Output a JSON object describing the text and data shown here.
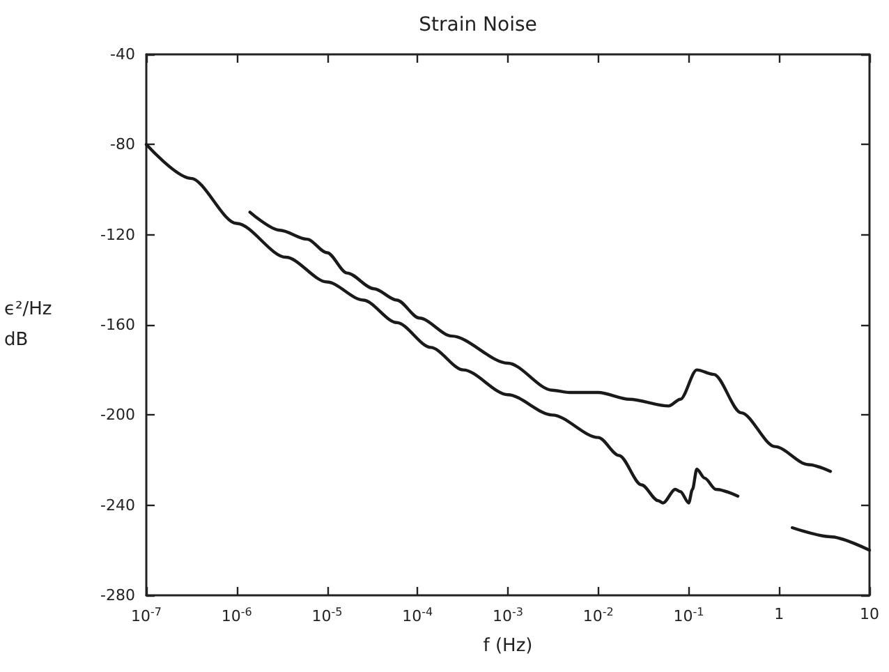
{
  "chart_data": {
    "type": "line",
    "title": "Strain Noise",
    "xlabel": "f (Hz)",
    "ylabel": "ϵ²/Hz\ndB",
    "log": "x",
    "grid": false,
    "marker": "none",
    "line_style": "solid",
    "xlim": [
      1e-07,
      10
    ],
    "ylim": [
      -280,
      -40
    ],
    "xticks": [
      {
        "value": 1e-07,
        "label": "10$^{-7}$"
      },
      {
        "value": 1e-06,
        "label": "10$^{-6}$"
      },
      {
        "value": 1e-05,
        "label": "10$^{-5}$"
      },
      {
        "value": 0.0001,
        "label": "10$^{-4}$"
      },
      {
        "value": 0.001,
        "label": "10$^{-3}$"
      },
      {
        "value": 0.01,
        "label": "10$^{-2}$"
      },
      {
        "value": 0.1,
        "label": "10$^{-1}$"
      },
      1,
      10
    ],
    "yticks": [
      -40,
      -80,
      -120,
      -160,
      -200,
      -240,
      -280
    ],
    "series": [
      {
        "color": "#1a1a1a",
        "x": [
          1e-07,
          3.1e-07,
          1e-06,
          3.5e-06,
          1e-05,
          2.5e-05,
          5.9e-05,
          0.00014,
          0.00032,
          0.001,
          0.0031,
          0.01,
          0.017,
          0.03,
          0.046,
          0.052,
          0.071,
          0.081,
          0.1,
          0.11,
          0.123,
          0.15,
          0.2,
          0.35
        ],
        "values": [
          -80,
          -95,
          -115,
          -130,
          -141,
          -149,
          -159,
          -170,
          -180,
          -191,
          -200,
          -210,
          -218,
          -231,
          -238,
          -239,
          -233,
          -234,
          -239,
          -233,
          -224,
          -228,
          -233,
          -236
        ]
      },
      {
        "color": "#1a1a1a",
        "x": [
          1.4e-06,
          3e-06,
          6e-06,
          1e-05,
          1.66e-05,
          3.3e-05,
          5.9e-05,
          0.000105,
          0.00024,
          0.001,
          0.0031,
          0.0048,
          0.01,
          0.022,
          0.06,
          0.081,
          0.123,
          0.19,
          0.38,
          0.9,
          2.1,
          3.7
        ],
        "values": [
          -110,
          -118,
          -122,
          -128,
          -137,
          -144,
          -149,
          -157,
          -165,
          -177,
          -189,
          -190,
          -190,
          -193,
          -196,
          -193,
          -180,
          -182,
          -199,
          -214,
          -222,
          -225
        ]
      },
      {
        "color": "#1a1a1a",
        "x": [
          1.4,
          3.7,
          10
        ],
        "values": [
          -250,
          -254,
          -260
        ]
      }
    ]
  }
}
